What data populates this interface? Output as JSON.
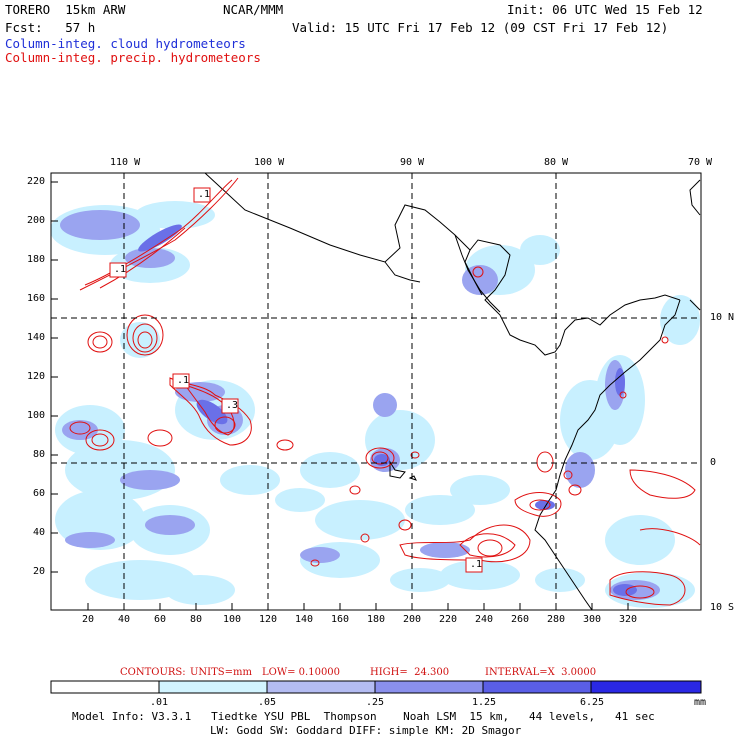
{
  "header": {
    "model": "TORERO  15km ARW",
    "org": "NCAR/MMM",
    "init": "Init: 06 UTC Wed 15 Feb 12",
    "fcst": "Fcst:   57 h",
    "valid": "Valid: 15 UTC Fri 17 Feb 12 (09 CST Fri 17 Feb 12)",
    "field1": "Column-integ. cloud hydrometeors",
    "field2": "Column-integ. precip. hydrometeors"
  },
  "map": {
    "lon_labels": [
      "110 W",
      "100 W",
      "90 W",
      "80 W",
      "70 W"
    ],
    "lat_labels": [
      "10 N",
      "0",
      "10 S"
    ],
    "x_ticks": [
      "20",
      "40",
      "60",
      "80",
      "100",
      "120",
      "140",
      "160",
      "180",
      "200",
      "220",
      "240",
      "260",
      "280",
      "300",
      "320"
    ],
    "y_ticks": [
      "220",
      "200",
      "180",
      "160",
      "140",
      "120",
      "100",
      "80",
      "60",
      "40",
      "20"
    ],
    "box_labels": [
      ".1",
      ".1",
      ".1",
      ".3",
      ".1"
    ],
    "colors": {
      "light": "#c8f0ff",
      "mid": "#9aa4f0",
      "dark": "#6a70e8",
      "contour": "#e01010",
      "coast": "#000000"
    }
  },
  "contours": {
    "title": "CONTOURS:",
    "units": "UNITS=mm",
    "low": "LOW= 0.10000",
    "high": "HIGH=  24.300",
    "interval": "INTERVAL=X  3.0000"
  },
  "colorbar": {
    "labels": [
      ".01",
      ".05",
      ".25",
      "1.25",
      "6.25"
    ],
    "unit": "mm",
    "colors": [
      "#ffffff",
      "#d2f4ff",
      "#b4bcf2",
      "#8a90ec",
      "#5a5ee6",
      "#2a28e4"
    ]
  },
  "footer": {
    "line1": "Model Info: V3.3.1   Tiedtke YSU PBL  Thompson    Noah LSM  15 km,   44 levels,   41 sec",
    "line2": "LW: Godd SW: Goddard DIFF: simple KM: 2D Smagor"
  }
}
